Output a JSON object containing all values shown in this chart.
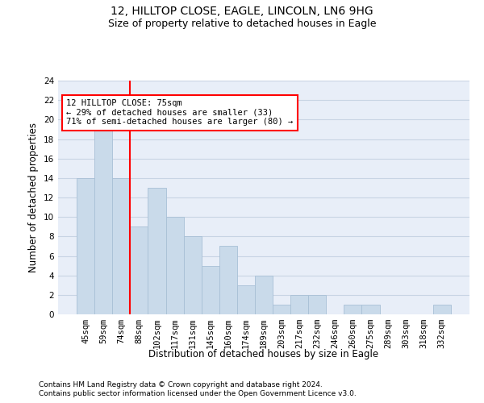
{
  "title1": "12, HILLTOP CLOSE, EAGLE, LINCOLN, LN6 9HG",
  "title2": "Size of property relative to detached houses in Eagle",
  "xlabel": "Distribution of detached houses by size in Eagle",
  "ylabel": "Number of detached properties",
  "categories": [
    "45sqm",
    "59sqm",
    "74sqm",
    "88sqm",
    "102sqm",
    "117sqm",
    "131sqm",
    "145sqm",
    "160sqm",
    "174sqm",
    "189sqm",
    "203sqm",
    "217sqm",
    "232sqm",
    "246sqm",
    "260sqm",
    "275sqm",
    "289sqm",
    "303sqm",
    "318sqm",
    "332sqm"
  ],
  "values": [
    14,
    19,
    14,
    9,
    13,
    10,
    8,
    5,
    7,
    3,
    4,
    1,
    2,
    2,
    0,
    1,
    1,
    0,
    0,
    0,
    1
  ],
  "bar_color": "#c9daea",
  "bar_edge_color": "#a8c0d6",
  "annotation_text": "12 HILLTOP CLOSE: 75sqm\n← 29% of detached houses are smaller (33)\n71% of semi-detached houses are larger (80) →",
  "annotation_box_color": "white",
  "annotation_box_edge_color": "red",
  "vline_color": "red",
  "ylim": [
    0,
    24
  ],
  "yticks": [
    0,
    2,
    4,
    6,
    8,
    10,
    12,
    14,
    16,
    18,
    20,
    22,
    24
  ],
  "grid_color": "#c8d4e4",
  "background_color": "#e8eef8",
  "footer1": "Contains HM Land Registry data © Crown copyright and database right 2024.",
  "footer2": "Contains public sector information licensed under the Open Government Licence v3.0.",
  "title1_fontsize": 10,
  "title2_fontsize": 9,
  "xlabel_fontsize": 8.5,
  "ylabel_fontsize": 8.5,
  "tick_fontsize": 7.5,
  "annotation_fontsize": 7.5,
  "footer_fontsize": 6.5
}
